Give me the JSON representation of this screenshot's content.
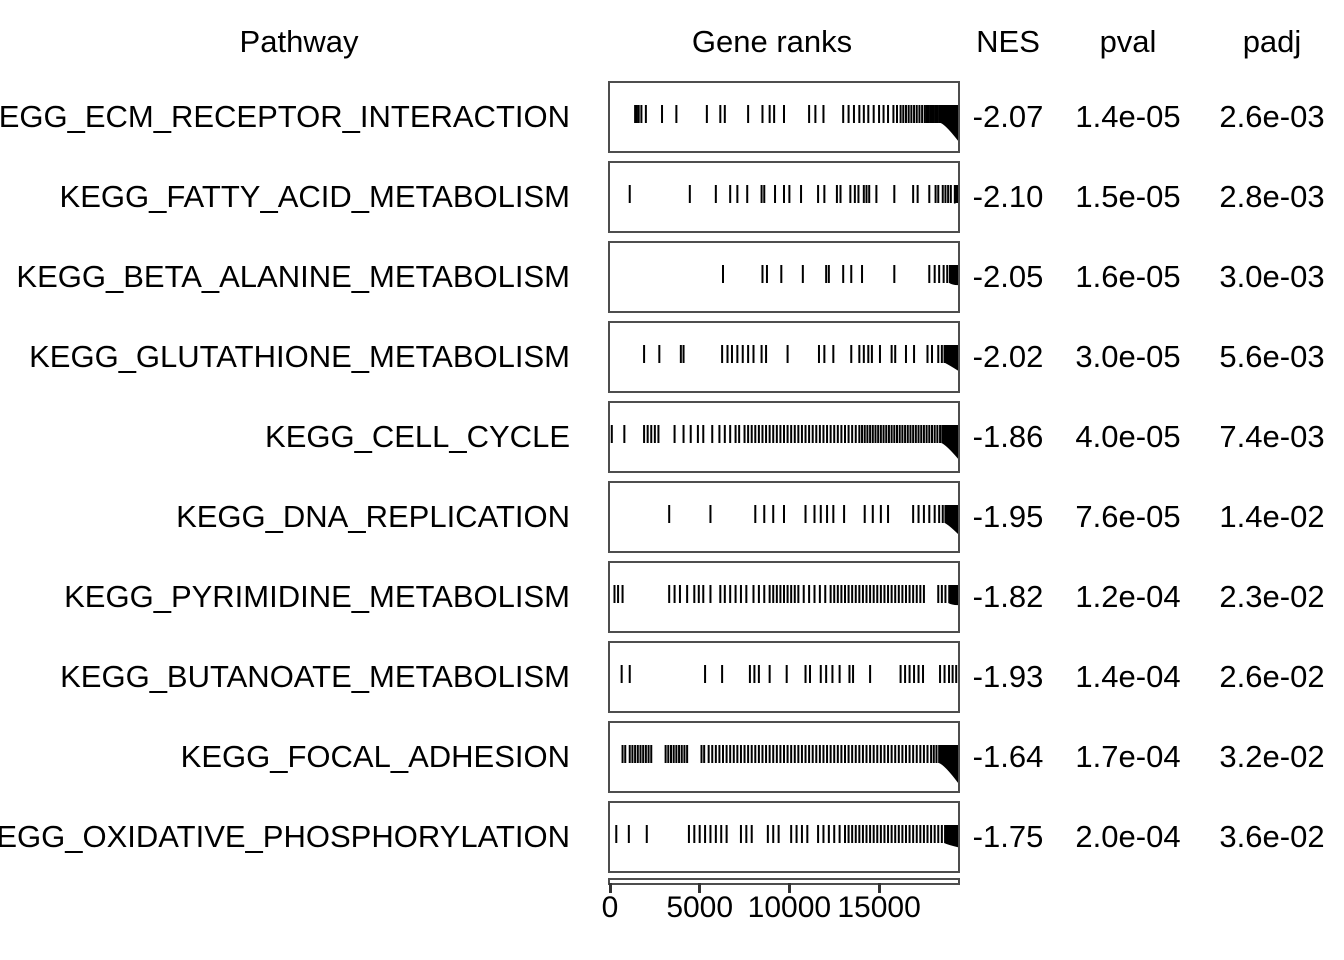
{
  "colors": {
    "background": "#ffffff",
    "text": "#000000",
    "box_border": "#4d4d4d",
    "tick": "#000000",
    "axis": "#333333"
  },
  "chart_data": {
    "type": "table",
    "description_columns": "GSEA results table with gene-rank rug plots",
    "columns": [
      "Pathway",
      "Gene ranks",
      "NES",
      "pval",
      "padj"
    ],
    "axis": {
      "tick_values": [
        0,
        5000,
        10000,
        15000
      ],
      "tick_labels": [
        "0",
        "5000",
        "10000",
        "15000"
      ],
      "max": 19400
    },
    "rows": [
      {
        "pathway": "KEGG_ECM_RECEPTOR_INTERACTION",
        "nes": "-2.07",
        "pval": "1.4e-05",
        "padj": "2.6e-03",
        "gene_rank_ticks": [
          1400,
          1500,
          1600,
          1750,
          2000,
          2900,
          3700,
          5400,
          6150,
          6400,
          7700,
          8500,
          8900,
          9150,
          9700,
          11100,
          11450,
          11900,
          13000,
          13300,
          13600,
          13900,
          14150,
          14400,
          14700,
          15000,
          15250,
          15500,
          15800,
          16000,
          16200,
          16350,
          16500,
          16650,
          16800,
          16950,
          17100,
          17250,
          17400,
          17550,
          17650,
          17750,
          17850,
          17950,
          18050,
          18150,
          18250,
          18350,
          18450,
          18550,
          18650,
          18750,
          18850,
          18950,
          19050,
          19150,
          19250,
          19350
        ],
        "tail_wedge": {
          "start_frac": 0.95,
          "depth_frac": 0.85
        }
      },
      {
        "pathway": "KEGG_FATTY_ACID_METABOLISM",
        "nes": "-2.10",
        "pval": "1.5e-05",
        "padj": "2.8e-03",
        "gene_rank_ticks": [
          1100,
          4450,
          5900,
          6700,
          7100,
          7650,
          8450,
          8600,
          9200,
          9700,
          10000,
          10650,
          11600,
          11950,
          12650,
          12850,
          13400,
          13650,
          13850,
          14150,
          14300,
          14450,
          14850,
          15850,
          16900,
          17150,
          17800,
          18150,
          18300,
          18550,
          18700,
          18850,
          19000,
          19350
        ],
        "tail_wedge": {
          "start_frac": 0.988,
          "depth_frac": 0.55
        }
      },
      {
        "pathway": "KEGG_BETA_ALANINE_METABOLISM",
        "nes": "-2.05",
        "pval": "1.6e-05",
        "padj": "3.0e-03",
        "gene_rank_ticks": [
          6300,
          8500,
          8750,
          9550,
          10750,
          12050,
          12200,
          13000,
          13450,
          14050,
          15850,
          17800,
          18100,
          18350,
          18600,
          18800,
          18950,
          19100,
          19250
        ],
        "tail_wedge": {
          "start_frac": 0.975,
          "depth_frac": 0.62
        }
      },
      {
        "pathway": "KEGG_GLUTATHIONE_METABOLISM",
        "nes": "-2.02",
        "pval": "3.0e-05",
        "padj": "5.6e-03",
        "gene_rank_ticks": [
          1900,
          2750,
          3950,
          4100,
          6250,
          6550,
          6800,
          7100,
          7400,
          7700,
          8000,
          8450,
          8700,
          9900,
          11650,
          11950,
          12450,
          13450,
          13900,
          14150,
          14400,
          14600,
          15050,
          15700,
          15900,
          16500,
          16950,
          17700,
          17950,
          18300,
          18500,
          18650,
          18800,
          18950,
          19100,
          19250
        ],
        "tail_wedge": {
          "start_frac": 0.963,
          "depth_frac": 0.7
        }
      },
      {
        "pathway": "KEGG_CELL_CYCLE",
        "nes": "-1.86",
        "pval": "4.0e-05",
        "padj": "7.4e-03",
        "gene_rank_ticks": [
          100,
          800,
          1900,
          2100,
          2300,
          2500,
          2700,
          3600,
          4100,
          4500,
          4900,
          5200,
          5700,
          6100,
          6400,
          6700,
          7000,
          7200,
          7500,
          7700,
          7900,
          8100,
          8300,
          8500,
          8700,
          8900,
          9100,
          9300,
          9500,
          9700,
          9900,
          10100,
          10300,
          10500,
          10700,
          10900,
          11100,
          11300,
          11500,
          11700,
          11900,
          12100,
          12300,
          12500,
          12700,
          12900,
          13100,
          13300,
          13500,
          13700,
          13900,
          14050,
          14200,
          14350,
          14500,
          14650,
          14800,
          14950,
          15100,
          15250,
          15400,
          15550,
          15700,
          15850,
          16000,
          16150,
          16300,
          16450,
          16600,
          16750,
          16900,
          17050,
          17200,
          17350,
          17500,
          17650,
          17800,
          17950,
          18100,
          18250,
          18400,
          18550
        ],
        "tail_wedge": {
          "start_frac": 0.952,
          "depth_frac": 0.82
        }
      },
      {
        "pathway": "KEGG_DNA_REPLICATION",
        "nes": "-1.95",
        "pval": "7.6e-05",
        "padj": "1.4e-02",
        "gene_rank_ticks": [
          3300,
          5600,
          8100,
          8600,
          9100,
          9700,
          10900,
          11400,
          11750,
          12100,
          12450,
          13050,
          14200,
          14650,
          15100,
          15500,
          16900,
          17200,
          17500,
          17800,
          18100,
          18350,
          18550,
          18700
        ],
        "tail_wedge": {
          "start_frac": 0.962,
          "depth_frac": 0.75
        }
      },
      {
        "pathway": "KEGG_PYRIMIDINE_METABOLISM",
        "nes": "-1.82",
        "pval": "1.2e-04",
        "padj": "2.3e-02",
        "gene_rank_ticks": [
          250,
          450,
          700,
          3300,
          3600,
          3900,
          4300,
          4700,
          4950,
          5200,
          5600,
          6150,
          6400,
          6700,
          7000,
          7300,
          7600,
          8000,
          8300,
          8600,
          8900,
          9100,
          9300,
          9500,
          9700,
          9900,
          10100,
          10300,
          10500,
          10800,
          11100,
          11400,
          11700,
          12000,
          12300,
          12500,
          12700,
          12900,
          13100,
          13300,
          13500,
          13700,
          13900,
          14100,
          14300,
          14500,
          14700,
          14900,
          15100,
          15300,
          15500,
          15700,
          15900,
          16100,
          16300,
          16500,
          16700,
          16900,
          17100,
          17300,
          17500,
          18300,
          18500,
          18700
        ],
        "tail_wedge": {
          "start_frac": 0.972,
          "depth_frac": 0.62
        }
      },
      {
        "pathway": "KEGG_BUTANOATE_METABOLISM",
        "nes": "-1.93",
        "pval": "1.4e-04",
        "padj": "2.6e-02",
        "gene_rank_ticks": [
          650,
          1100,
          5300,
          6250,
          7800,
          8050,
          8300,
          8900,
          9850,
          10900,
          11150,
          11750,
          12050,
          12400,
          12800,
          13350,
          13550,
          14500,
          16200,
          16450,
          16700,
          16950,
          17200,
          17450,
          18400,
          18650,
          18900,
          19100,
          19300
        ],
        "tail_wedge": null
      },
      {
        "pathway": "KEGG_FOCAL_ADHESION",
        "nes": "-1.64",
        "pval": "1.7e-04",
        "padj": "3.2e-02",
        "gene_rank_ticks": [
          700,
          850,
          1100,
          1250,
          1400,
          1550,
          1700,
          1850,
          2000,
          2150,
          2300,
          3100,
          3250,
          3400,
          3550,
          3700,
          3850,
          4000,
          4150,
          4300,
          5100,
          5250,
          5500,
          5700,
          5900,
          6100,
          6300,
          6500,
          6700,
          6900,
          7100,
          7300,
          7500,
          7700,
          7900,
          8100,
          8300,
          8500,
          8700,
          8900,
          9100,
          9300,
          9500,
          9700,
          9900,
          10100,
          10300,
          10500,
          10700,
          10900,
          11100,
          11300,
          11500,
          11700,
          11900,
          12100,
          12300,
          12500,
          12700,
          12900,
          13100,
          13300,
          13500,
          13700,
          13900,
          14100,
          14300,
          14500,
          14700,
          14900,
          15100,
          15300,
          15500,
          15700,
          15900,
          16100,
          16300,
          16500,
          16700,
          16900,
          17100,
          17300,
          17500,
          17700,
          17900,
          18050,
          18200,
          18350
        ],
        "tail_wedge": {
          "start_frac": 0.945,
          "depth_frac": 0.88
        }
      },
      {
        "pathway": "KEGG_OXIDATIVE_PHOSPHORYLATION",
        "nes": "-1.75",
        "pval": "2.0e-04",
        "padj": "3.6e-02",
        "gene_rank_ticks": [
          350,
          1050,
          2050,
          4400,
          4700,
          5000,
          5300,
          5600,
          5900,
          6200,
          6500,
          7300,
          7600,
          7900,
          8800,
          9100,
          9400,
          10100,
          10400,
          10700,
          11000,
          11600,
          11900,
          12200,
          12500,
          12800,
          13100,
          13300,
          13500,
          13700,
          13900,
          14100,
          14300,
          14500,
          14700,
          14900,
          15100,
          15300,
          15500,
          15700,
          15900,
          16100,
          16300,
          16500,
          16700,
          16900,
          17100,
          17300,
          17500,
          17700,
          17900,
          18100,
          18300,
          18500
        ],
        "tail_wedge": {
          "start_frac": 0.96,
          "depth_frac": 0.65
        }
      }
    ]
  }
}
